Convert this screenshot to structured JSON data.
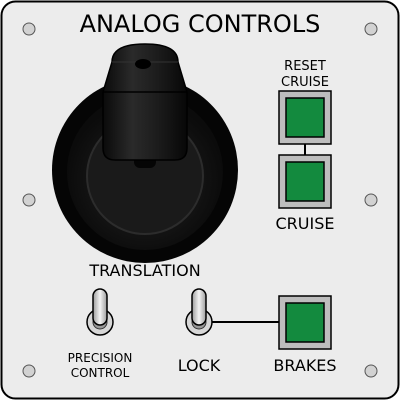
{
  "panel": {
    "title": "ANALOG CONTROLS",
    "colors": {
      "face": "#ececec",
      "outline": "#000000",
      "button_green": "#138a3e",
      "bezel": "#c7c7c7",
      "joystick": "#141414"
    }
  },
  "joystick": {
    "label": "TRANSLATION",
    "icon": "joystick-icon"
  },
  "buttons": {
    "reset_cruise": {
      "label_line1": "RESET",
      "label_line2": "CRUISE"
    },
    "cruise": {
      "label": "CRUISE"
    },
    "brakes": {
      "label": "BRAKES"
    }
  },
  "switches": {
    "precision": {
      "label_line1": "PRECISION",
      "label_line2": "CONTROL",
      "state": "up"
    },
    "lock": {
      "label": "LOCK",
      "state": "up"
    }
  }
}
